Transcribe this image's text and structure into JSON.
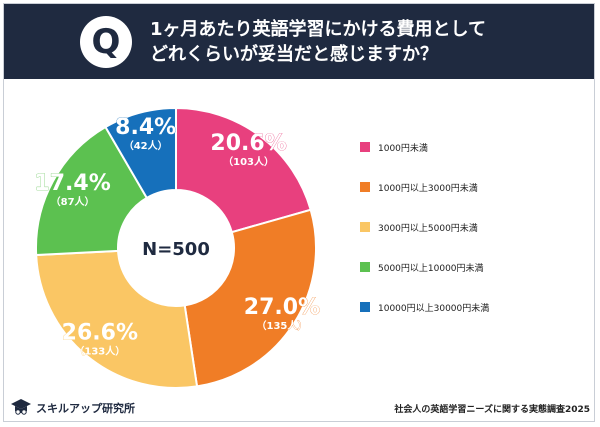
{
  "header": {
    "badge": "Q",
    "question_line1": "1ヶ月あたり英語学習にかける費用として",
    "question_line2": "どれくらいが妥当だと感じますか？"
  },
  "chart_data": {
    "type": "pie",
    "donut": true,
    "center_label": "N=500",
    "categories": [
      "1000円未満",
      "1000円以上3000円未満",
      "3000円以上5000円未満",
      "5000円以上10000円未満",
      "10000円以上30000円未満"
    ],
    "values": [
      20.6,
      27.0,
      26.6,
      17.4,
      8.4
    ],
    "value_labels": [
      "20.6%",
      "27.0%",
      "26.6%",
      "17.4%",
      "8.4%"
    ],
    "count_labels": [
      "（103人）",
      "（135人）",
      "（133人）",
      "（87人）",
      "（42人）"
    ],
    "colors": [
      "#e8407e",
      "#f07d26",
      "#fac664",
      "#5cc150",
      "#1670bb"
    ],
    "label_colors": [
      "#e8407e",
      "#f07d26",
      "#fac664",
      "#5cc150",
      "#1670bb"
    ],
    "legend_position": "right"
  },
  "footer": {
    "brand": "スキルアップ研究所",
    "source": "社会人の英語学習ニーズに関する実態調査2025"
  }
}
